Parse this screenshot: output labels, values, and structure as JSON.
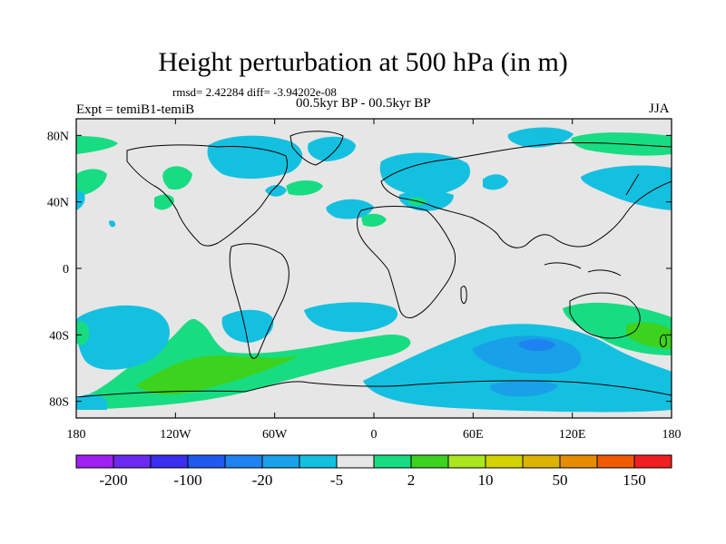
{
  "figure": {
    "title": "Height perturbation at 500 hPa (in m)",
    "stats": "rmsd= 2.42284 diff= -3.94202e-08",
    "experiment_label": "Expt = temiB1-temiB",
    "period_label": "00.5kyr BP - 00.5kyr BP",
    "season_label": "JJA"
  },
  "map": {
    "lat_ticks": [
      {
        "label": "80N",
        "lat": 80
      },
      {
        "label": "40N",
        "lat": 40
      },
      {
        "label": "0",
        "lat": 0
      },
      {
        "label": "40S",
        "lat": -40
      },
      {
        "label": "80S",
        "lat": -80
      }
    ],
    "lon_ticks": [
      {
        "label": "180",
        "lon": -180
      },
      {
        "label": "120W",
        "lon": -120
      },
      {
        "label": "60W",
        "lon": -60
      },
      {
        "label": "0",
        "lon": 0
      },
      {
        "label": "60E",
        "lon": 60
      },
      {
        "label": "120E",
        "lon": 120
      },
      {
        "label": "180",
        "lon": 180
      }
    ],
    "lat_range": [
      -90,
      90
    ],
    "lon_range": [
      -180,
      180
    ]
  },
  "colorbar": {
    "colors": [
      "#a020f0",
      "#6a2af0",
      "#3a2ef0",
      "#1e5af0",
      "#1e82f0",
      "#18a0e8",
      "#14c0e0",
      "#e6e6e6",
      "#18dc82",
      "#3cd21e",
      "#aae61e",
      "#d2d200",
      "#dcb400",
      "#e68c00",
      "#f05a00",
      "#f01e1e"
    ],
    "labels": [
      {
        "text": "-200",
        "index": 1
      },
      {
        "text": "-100",
        "index": 3
      },
      {
        "text": "-20",
        "index": 5
      },
      {
        "text": "-5",
        "index": 7
      },
      {
        "text": "2",
        "index": 9
      },
      {
        "text": "10",
        "index": 11
      },
      {
        "text": "50",
        "index": 13
      },
      {
        "text": "150",
        "index": 15
      }
    ]
  }
}
